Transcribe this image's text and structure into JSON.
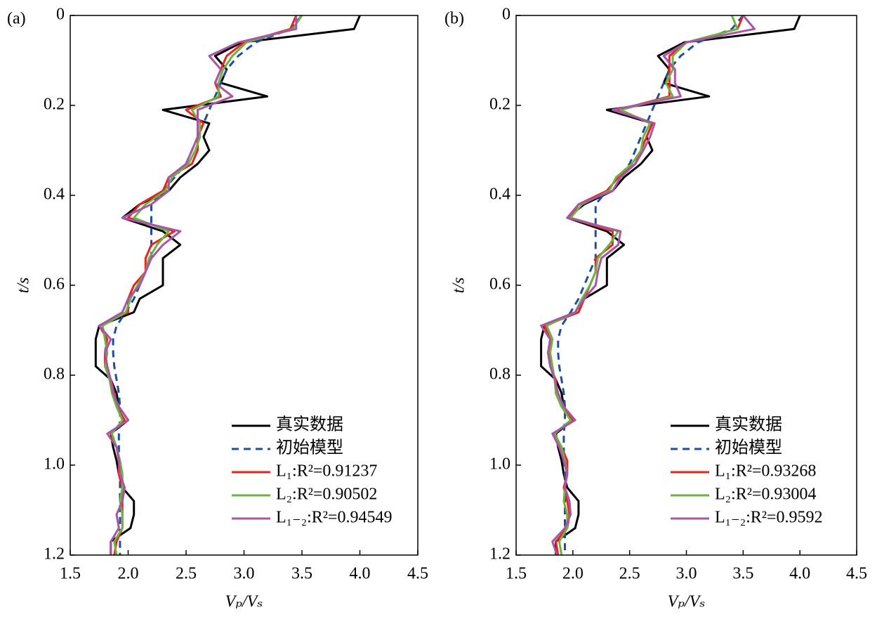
{
  "chart_data": [
    {
      "type": "line",
      "panel_label": "(a)",
      "xlabel": "Vₚ/Vₛ",
      "ylabel": "t/s",
      "y": [
        0,
        0.03,
        0.06,
        0.09,
        0.12,
        0.15,
        0.18,
        0.21,
        0.24,
        0.27,
        0.3,
        0.33,
        0.36,
        0.39,
        0.42,
        0.45,
        0.48,
        0.51,
        0.54,
        0.57,
        0.6,
        0.63,
        0.66,
        0.69,
        0.72,
        0.75,
        0.78,
        0.81,
        0.84,
        0.87,
        0.9,
        0.93,
        0.96,
        0.99,
        1.02,
        1.05,
        1.08,
        1.11,
        1.14,
        1.17,
        1.2
      ],
      "series": [
        {
          "name": "真实数据",
          "color": "#000000",
          "dashed": false,
          "values": [
            4.0,
            3.95,
            2.98,
            2.75,
            2.85,
            2.8,
            3.2,
            2.3,
            2.7,
            2.65,
            2.7,
            2.6,
            2.45,
            2.35,
            2.1,
            1.95,
            2.3,
            2.45,
            2.3,
            2.3,
            2.3,
            2.1,
            2.05,
            1.75,
            1.72,
            1.72,
            1.72,
            1.85,
            1.9,
            1.92,
            2.0,
            1.85,
            1.87,
            1.9,
            1.92,
            1.95,
            2.05,
            2.05,
            2.02,
            1.85,
            1.85
          ]
        },
        {
          "name": "初始模型",
          "color": "#1f4e9c",
          "dashed": true,
          "values": [
            3.5,
            3.4,
            3.1,
            2.95,
            2.85,
            2.8,
            2.75,
            2.7,
            2.65,
            2.6,
            2.55,
            2.5,
            2.4,
            2.3,
            2.2,
            2.2,
            2.2,
            2.2,
            2.2,
            2.15,
            2.1,
            2.05,
            1.98,
            1.9,
            1.87,
            1.87,
            1.88,
            1.9,
            1.92,
            1.93,
            1.93,
            1.92,
            1.92,
            1.92,
            1.93,
            1.93,
            1.93,
            1.93,
            1.93,
            1.93,
            1.93
          ]
        },
        {
          "name": "L₁:R²=0.91237",
          "color": "#e8231f",
          "dashed": false,
          "values": [
            3.45,
            3.4,
            3.0,
            2.85,
            2.8,
            2.75,
            2.8,
            2.5,
            2.65,
            2.6,
            2.6,
            2.55,
            2.35,
            2.3,
            2.1,
            2.0,
            2.4,
            2.2,
            2.15,
            2.15,
            2.05,
            2.0,
            2.0,
            1.75,
            1.82,
            1.8,
            1.8,
            1.85,
            1.88,
            1.9,
            1.97,
            1.85,
            1.9,
            1.92,
            1.92,
            1.95,
            1.95,
            1.95,
            1.95,
            1.9,
            1.88
          ]
        },
        {
          "name": "L₂:R²=0.90502",
          "color": "#6cb33f",
          "dashed": false,
          "values": [
            3.5,
            3.42,
            3.02,
            2.9,
            2.82,
            2.78,
            2.78,
            2.55,
            2.62,
            2.62,
            2.58,
            2.52,
            2.38,
            2.32,
            2.15,
            2.05,
            2.35,
            2.25,
            2.18,
            2.15,
            2.08,
            2.02,
            1.98,
            1.78,
            1.8,
            1.82,
            1.8,
            1.84,
            1.86,
            1.9,
            1.95,
            1.86,
            1.9,
            1.93,
            1.95,
            1.95,
            1.93,
            1.95,
            1.95,
            1.88,
            1.9
          ]
        },
        {
          "name": "L₁₋₂:R²=0.94549",
          "color": "#a855a8",
          "dashed": false,
          "values": [
            3.45,
            3.45,
            2.95,
            2.7,
            2.8,
            2.75,
            2.9,
            2.6,
            2.6,
            2.6,
            2.55,
            2.5,
            2.35,
            2.35,
            2.2,
            1.95,
            2.45,
            2.3,
            2.2,
            2.15,
            2.1,
            2.0,
            1.95,
            1.75,
            1.85,
            1.8,
            1.82,
            1.85,
            1.87,
            1.92,
            2.0,
            1.82,
            1.9,
            1.92,
            1.93,
            1.97,
            1.95,
            1.9,
            1.92,
            1.85,
            1.85
          ]
        }
      ],
      "xlim": [
        1.5,
        4.5
      ],
      "xticks": [
        1.5,
        {
          "value": 2,
          "label": "2.0"
        },
        2.5,
        {
          "value": 3,
          "label": "3.0"
        },
        3.5,
        {
          "value": 4,
          "label": "4.0"
        },
        4.5
      ],
      "ylim": [
        0,
        1.2
      ],
      "yticks": [
        0,
        0.2,
        0.4,
        0.6,
        0.8,
        {
          "value": 1,
          "label": "1.0"
        },
        1.2
      ],
      "y_inverted": true,
      "legend": "lower right"
    },
    {
      "type": "line",
      "panel_label": "(b)",
      "xlabel": "Vₚ/Vₛ",
      "ylabel": "t/s",
      "y": [
        0,
        0.03,
        0.06,
        0.09,
        0.12,
        0.15,
        0.18,
        0.21,
        0.24,
        0.27,
        0.3,
        0.33,
        0.36,
        0.39,
        0.42,
        0.45,
        0.48,
        0.51,
        0.54,
        0.57,
        0.6,
        0.63,
        0.66,
        0.69,
        0.72,
        0.75,
        0.78,
        0.81,
        0.84,
        0.87,
        0.9,
        0.93,
        0.96,
        0.99,
        1.02,
        1.05,
        1.08,
        1.11,
        1.14,
        1.17,
        1.2
      ],
      "series": [
        {
          "name": "真实数据",
          "color": "#000000",
          "dashed": false,
          "values": [
            4.0,
            3.95,
            2.98,
            2.75,
            2.85,
            2.8,
            3.2,
            2.3,
            2.7,
            2.65,
            2.7,
            2.6,
            2.45,
            2.35,
            2.1,
            1.95,
            2.3,
            2.45,
            2.3,
            2.3,
            2.3,
            2.1,
            2.05,
            1.75,
            1.72,
            1.72,
            1.72,
            1.85,
            1.9,
            1.92,
            2.0,
            1.85,
            1.87,
            1.9,
            1.92,
            1.95,
            2.05,
            2.05,
            2.02,
            1.85,
            1.85
          ]
        },
        {
          "name": "初始模型",
          "color": "#1f4e9c",
          "dashed": true,
          "values": [
            3.5,
            3.4,
            3.1,
            2.95,
            2.85,
            2.8,
            2.75,
            2.7,
            2.65,
            2.6,
            2.55,
            2.5,
            2.4,
            2.3,
            2.2,
            2.2,
            2.2,
            2.2,
            2.2,
            2.15,
            2.1,
            2.05,
            1.98,
            1.9,
            1.87,
            1.87,
            1.88,
            1.9,
            1.92,
            1.93,
            1.93,
            1.92,
            1.92,
            1.92,
            1.93,
            1.93,
            1.93,
            1.93,
            1.93,
            1.93,
            1.93
          ]
        },
        {
          "name": "L₁:R²=0.93268",
          "color": "#e8231f",
          "dashed": false,
          "values": [
            3.5,
            3.45,
            3.0,
            2.85,
            2.85,
            2.85,
            2.85,
            2.4,
            2.7,
            2.65,
            2.6,
            2.55,
            2.4,
            2.3,
            2.05,
            1.97,
            2.35,
            2.35,
            2.2,
            2.2,
            2.15,
            2.1,
            2.05,
            1.75,
            1.8,
            1.8,
            1.8,
            1.85,
            1.85,
            1.9,
            2.0,
            1.83,
            1.9,
            1.95,
            1.95,
            1.92,
            1.95,
            1.97,
            1.95,
            1.85,
            1.87
          ]
        },
        {
          "name": "L₂:R²=0.93004",
          "color": "#6cb33f",
          "dashed": false,
          "values": [
            3.4,
            3.45,
            3.0,
            2.88,
            2.88,
            2.82,
            2.88,
            2.42,
            2.68,
            2.62,
            2.6,
            2.52,
            2.38,
            2.32,
            2.08,
            1.98,
            2.4,
            2.32,
            2.22,
            2.2,
            2.15,
            2.08,
            2.02,
            1.77,
            1.82,
            1.8,
            1.82,
            1.84,
            1.85,
            1.9,
            1.98,
            1.84,
            1.9,
            1.93,
            1.95,
            1.93,
            1.92,
            1.95,
            1.95,
            1.88,
            1.9
          ]
        },
        {
          "name": "L₁₋₂:R²=0.9592",
          "color": "#a855a8",
          "dashed": false,
          "values": [
            3.5,
            3.6,
            3.0,
            2.8,
            2.9,
            2.9,
            2.95,
            2.35,
            2.72,
            2.68,
            2.62,
            2.55,
            2.42,
            2.35,
            2.05,
            1.95,
            2.42,
            2.4,
            2.25,
            2.22,
            2.2,
            2.1,
            2.02,
            1.72,
            1.8,
            1.78,
            1.8,
            1.84,
            1.87,
            1.92,
            2.02,
            1.82,
            1.88,
            1.92,
            1.95,
            1.93,
            1.97,
            1.98,
            1.93,
            1.82,
            1.86
          ]
        }
      ],
      "xlim": [
        1.5,
        4.5
      ],
      "xticks": [
        1.5,
        {
          "value": 2,
          "label": "2.0"
        },
        2.5,
        {
          "value": 3,
          "label": "3.0"
        },
        3.5,
        {
          "value": 4,
          "label": "4.0"
        },
        4.5
      ],
      "ylim": [
        0,
        1.2
      ],
      "yticks": [
        0,
        0.2,
        0.4,
        0.6,
        0.8,
        {
          "value": 1,
          "label": "1.0"
        },
        1.2
      ],
      "y_inverted": true,
      "legend": "lower right"
    }
  ]
}
